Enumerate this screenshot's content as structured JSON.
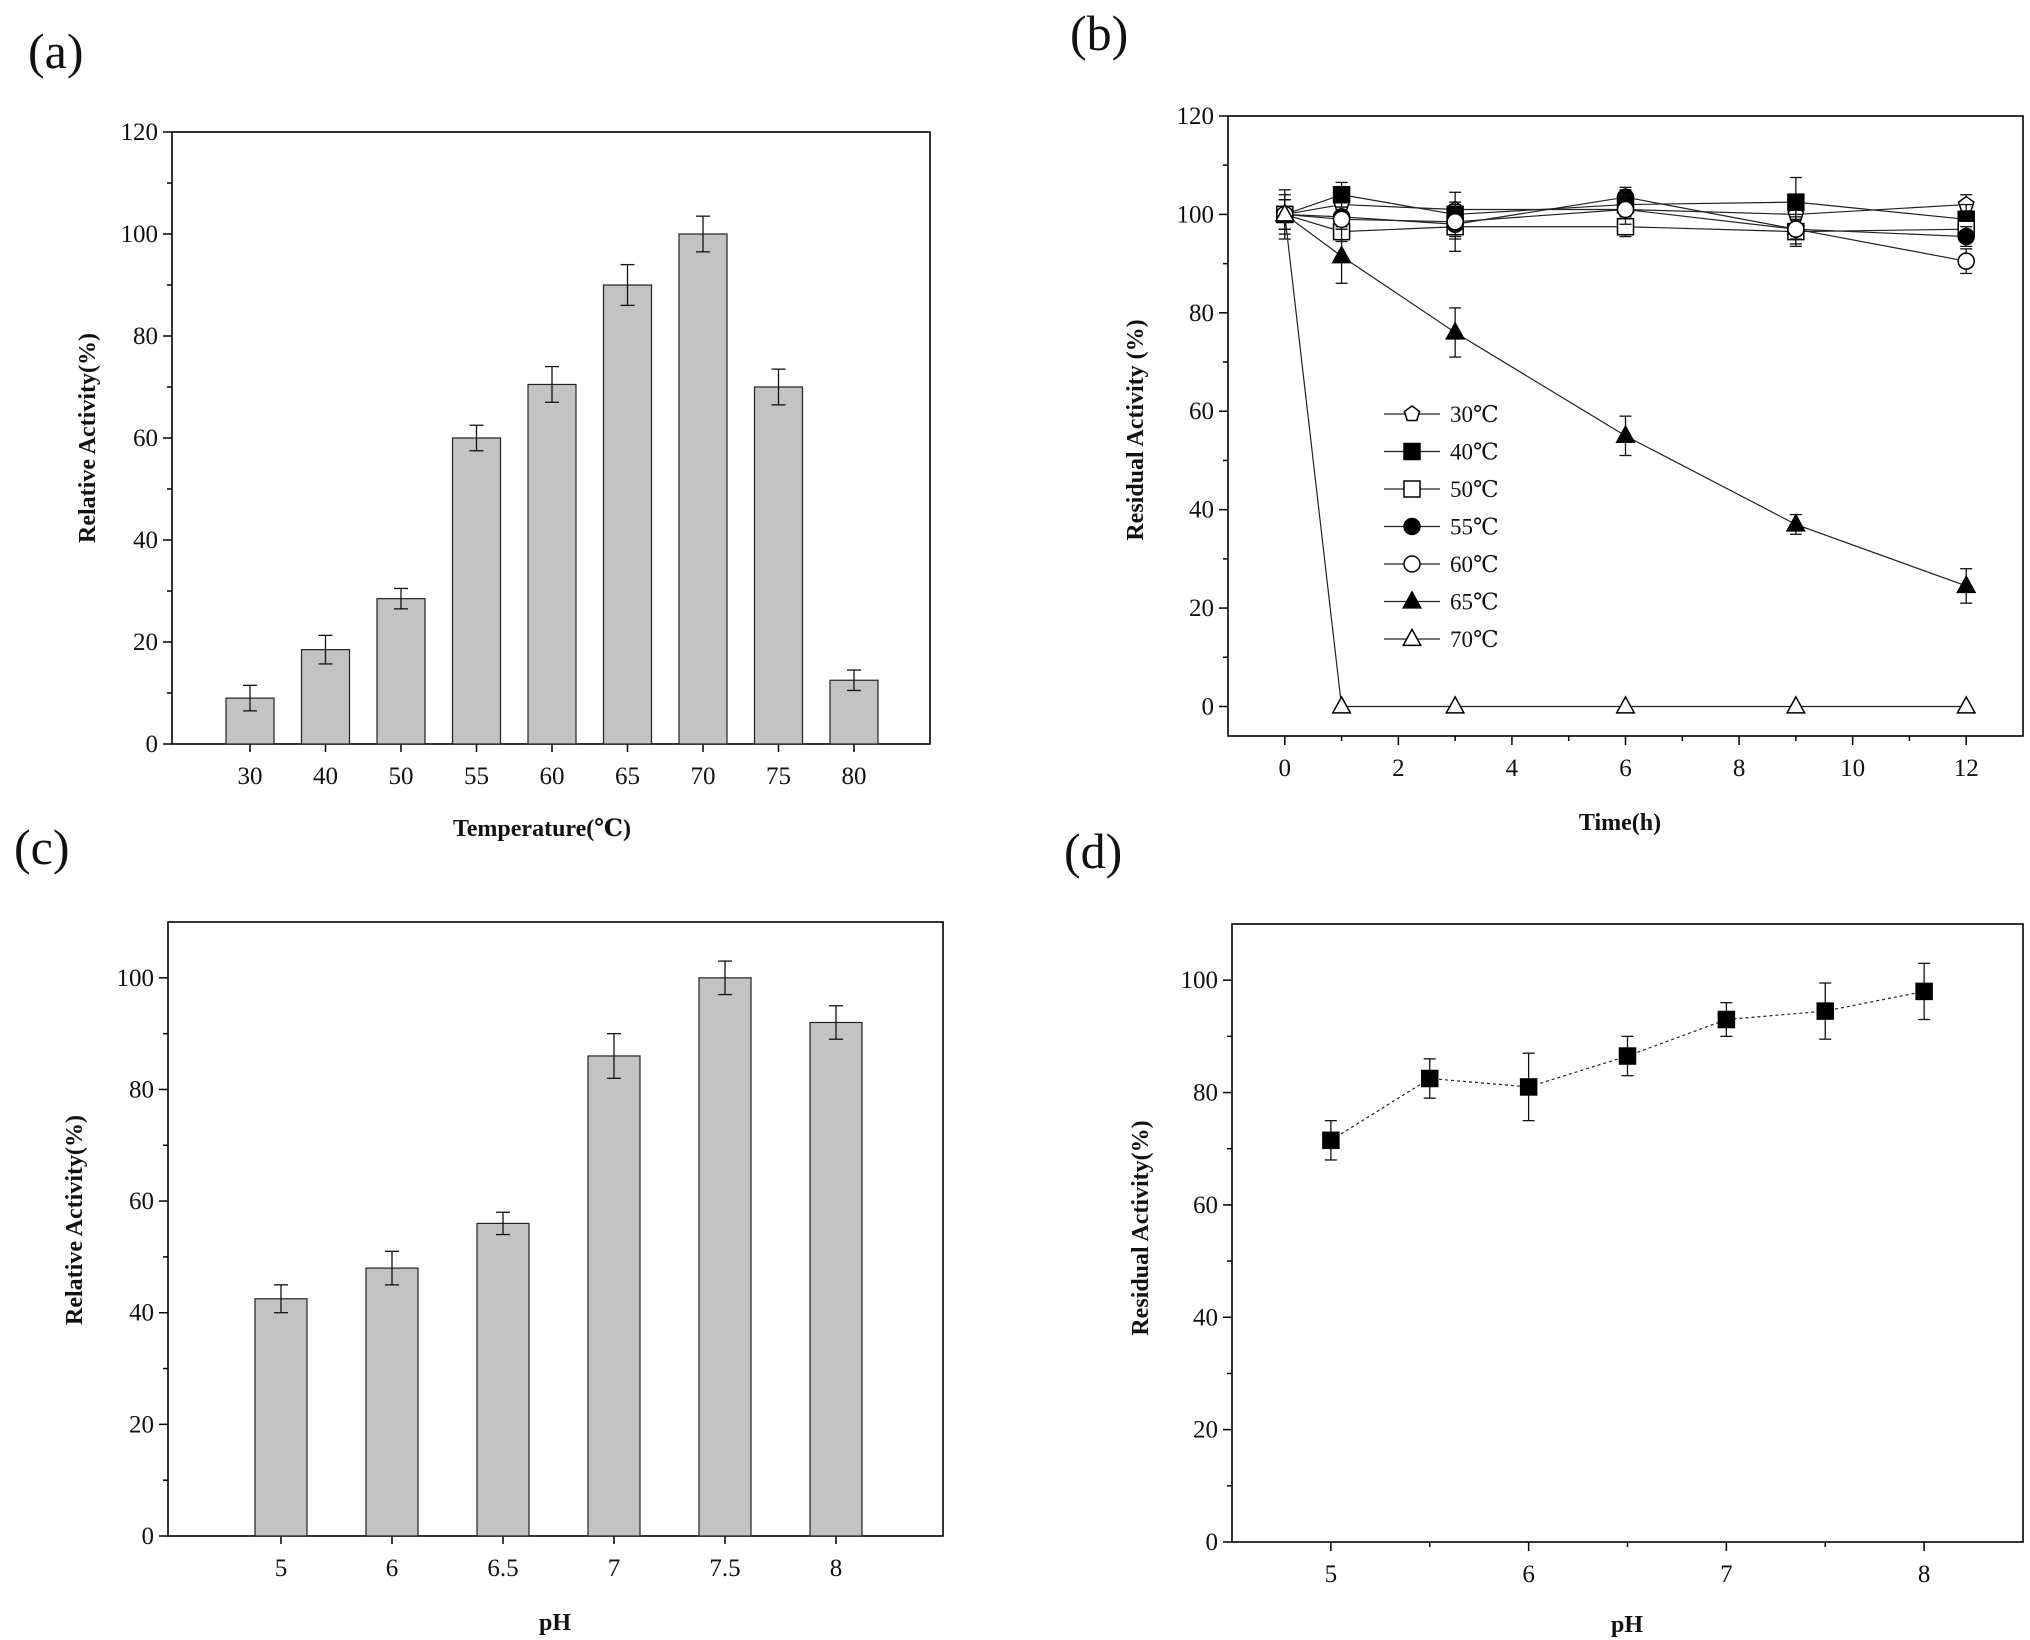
{
  "figure": {
    "background": "#ffffff",
    "bar_color": "#c3c3c3",
    "ink_color": "#111111"
  },
  "chart_data": [
    {
      "panel": "(a)",
      "type": "bar",
      "categories": [
        "30",
        "40",
        "50",
        "55",
        "60",
        "65",
        "70",
        "75",
        "80"
      ],
      "values": [
        9,
        18.5,
        28.5,
        60,
        70.5,
        90,
        100,
        70,
        12.5
      ],
      "errors": [
        2.5,
        2.8,
        2.0,
        2.5,
        3.5,
        4.0,
        3.5,
        3.5,
        2.0
      ],
      "title": "",
      "xlabel": "Temperature(℃)",
      "ylabel": "Relative Activity(%)",
      "ylim": [
        0,
        120
      ],
      "yticks": [
        0,
        20,
        40,
        60,
        80,
        100,
        120
      ],
      "grid": false
    },
    {
      "panel": "(b)",
      "type": "line",
      "x": [
        0,
        1,
        3,
        6,
        9,
        12
      ],
      "series": [
        {
          "name": "30℃",
          "marker": "pentagon-open",
          "values": [
            100,
            102,
            101,
            101,
            100,
            102
          ],
          "errors": [
            3,
            2,
            1.5,
            2,
            3,
            2
          ]
        },
        {
          "name": "40℃",
          "marker": "square-filled",
          "values": [
            100,
            104,
            100,
            102,
            102.5,
            99
          ],
          "errors": [
            4,
            2.5,
            2,
            3,
            5,
            3
          ]
        },
        {
          "name": "50℃",
          "marker": "square-open",
          "values": [
            100,
            96.5,
            97.5,
            97.5,
            96.5,
            97
          ],
          "errors": [
            3,
            2,
            2,
            2,
            3,
            2
          ]
        },
        {
          "name": "55℃",
          "marker": "circle-filled",
          "values": [
            100,
            99.5,
            98,
            103.5,
            97,
            95.5
          ],
          "errors": [
            3,
            2,
            3,
            2,
            3,
            2
          ]
        },
        {
          "name": "60℃",
          "marker": "circle-open",
          "values": [
            100,
            99,
            98.5,
            101,
            97,
            90.5
          ],
          "errors": [
            3,
            2,
            6,
            3,
            2,
            2.5
          ]
        },
        {
          "name": "65℃",
          "marker": "triangle-filled",
          "values": [
            100,
            91.5,
            76,
            55,
            37,
            24.5
          ],
          "errors": [
            5,
            5.5,
            5,
            4,
            2,
            3.5
          ]
        },
        {
          "name": "70℃",
          "marker": "triangle-open",
          "values": [
            100,
            0,
            0,
            0,
            0,
            0
          ],
          "errors": [
            3,
            0,
            0,
            0,
            0,
            0
          ]
        }
      ],
      "xlabel": "Time(h)",
      "ylabel": "Residual Activity (%)",
      "xlim": [
        -1,
        13
      ],
      "xticks": [
        0,
        2,
        4,
        6,
        8,
        10,
        12
      ],
      "ylim": [
        -6,
        120
      ],
      "yticks": [
        0,
        20,
        40,
        60,
        80,
        100,
        120
      ],
      "legend_position": "center-left",
      "grid": false
    },
    {
      "panel": "(c)",
      "type": "bar",
      "categories": [
        "5",
        "6",
        "6.5",
        "7",
        "7.5",
        "8"
      ],
      "values": [
        42.5,
        48,
        56,
        86,
        100,
        92
      ],
      "errors": [
        2.5,
        3.0,
        2.0,
        4.0,
        3.0,
        3.0
      ],
      "title": "",
      "xlabel": "pH",
      "ylabel": "Relative Activity(%)",
      "ylim": [
        0,
        110
      ],
      "yticks": [
        0,
        20,
        40,
        60,
        80,
        100
      ],
      "grid": false
    },
    {
      "panel": "(d)",
      "type": "line",
      "x": [
        5,
        5.5,
        6,
        6.5,
        7,
        7.5,
        8
      ],
      "series": [
        {
          "name": "Residual Activity",
          "marker": "square-filled",
          "line": "dotted",
          "values": [
            71.5,
            82.5,
            81,
            86.5,
            93,
            94.5,
            98
          ],
          "errors": [
            3.5,
            3.5,
            6.0,
            3.5,
            3.0,
            5.0,
            5.0
          ]
        }
      ],
      "xlabel": "pH",
      "ylabel": "Residual Activity(%)",
      "xlim": [
        4.5,
        8.5
      ],
      "xticks": [
        5,
        6,
        7,
        8
      ],
      "ylim": [
        0,
        110
      ],
      "yticks": [
        0,
        20,
        40,
        60,
        80,
        100
      ],
      "grid": false
    }
  ]
}
